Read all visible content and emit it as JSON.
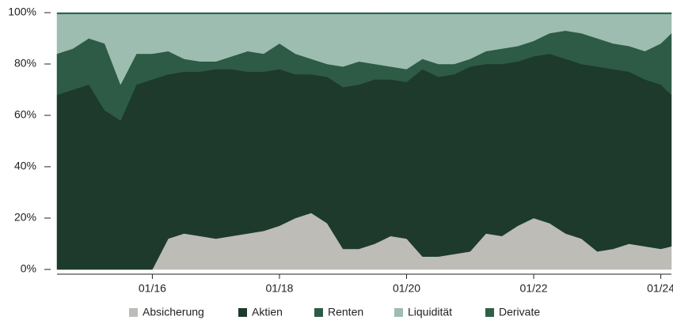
{
  "chart_data": {
    "type": "stacked_area",
    "x": [
      "2014-07",
      "2014-10",
      "2015-01",
      "2015-04",
      "2015-07",
      "2015-10",
      "2016-01",
      "2016-04",
      "2016-07",
      "2016-10",
      "2017-01",
      "2017-04",
      "2017-07",
      "2017-10",
      "2018-01",
      "2018-04",
      "2018-07",
      "2018-10",
      "2019-01",
      "2019-04",
      "2019-07",
      "2019-10",
      "2020-01",
      "2020-04",
      "2020-07",
      "2020-10",
      "2021-01",
      "2021-04",
      "2021-07",
      "2021-10",
      "2022-01",
      "2022-04",
      "2022-07",
      "2022-10",
      "2023-01",
      "2023-04",
      "2023-07",
      "2023-10",
      "2024-01",
      "2024-03"
    ],
    "series": [
      {
        "name": "Absicherung",
        "color": "#bdbcb6",
        "values": [
          0,
          0,
          0,
          0,
          0,
          0,
          0,
          12,
          14,
          13,
          12,
          13,
          14,
          15,
          17,
          20,
          22,
          18,
          8,
          8,
          10,
          13,
          12,
          5,
          5,
          6,
          7,
          14,
          13,
          17,
          20,
          18,
          14,
          12,
          7,
          8,
          10,
          9,
          8,
          9
        ]
      },
      {
        "name": "Aktien",
        "color": "#1d3a2c",
        "values": [
          68,
          70,
          72,
          62,
          58,
          72,
          74,
          64,
          63,
          64,
          66,
          65,
          63,
          62,
          61,
          56,
          54,
          57,
          63,
          64,
          64,
          61,
          61,
          73,
          70,
          70,
          72,
          66,
          67,
          64,
          63,
          66,
          68,
          68,
          72,
          70,
          67,
          65,
          64,
          59
        ]
      },
      {
        "name": "Renten",
        "color": "#2d5b45",
        "values": [
          16,
          16,
          18,
          26,
          14,
          12,
          10,
          9,
          5,
          4,
          3,
          5,
          8,
          7,
          10,
          8,
          6,
          5,
          8,
          9,
          6,
          5,
          5,
          4,
          5,
          4,
          3,
          5,
          6,
          6,
          6,
          8,
          11,
          12,
          11,
          10,
          10,
          11,
          16,
          24
        ]
      },
      {
        "name": "Liquidität",
        "color": "#9cbdb0",
        "values": [
          15.5,
          13.5,
          9.5,
          11.5,
          27.5,
          15.5,
          15.5,
          14.5,
          17.5,
          18.5,
          18.5,
          16.5,
          14.5,
          15.5,
          11.5,
          15.5,
          17.5,
          19.5,
          20.5,
          18.5,
          19.5,
          20.5,
          21.5,
          17.5,
          19.5,
          19.5,
          17.5,
          14.5,
          13.5,
          12.5,
          10.5,
          7.5,
          6.5,
          7.5,
          9.5,
          11.5,
          12.5,
          14.5,
          11.5,
          7.5
        ]
      },
      {
        "name": "Derivate",
        "color": "#2f5f47",
        "values": [
          0.5,
          0.5,
          0.5,
          0.5,
          0.5,
          0.5,
          0.5,
          0.5,
          0.5,
          0.5,
          0.5,
          0.5,
          0.5,
          0.5,
          0.5,
          0.5,
          0.5,
          0.5,
          0.5,
          0.5,
          0.5,
          0.5,
          0.5,
          0.5,
          0.5,
          0.5,
          0.5,
          0.5,
          0.5,
          0.5,
          0.5,
          0.5,
          0.5,
          0.5,
          0.5,
          0.5,
          0.5,
          0.5,
          0.5,
          0.5
        ]
      }
    ],
    "xlim": [
      "2014-07",
      "2024-03"
    ],
    "xticks": [
      {
        "value": "2016-01",
        "label": "01/16"
      },
      {
        "value": "2018-01",
        "label": "01/18"
      },
      {
        "value": "2020-01",
        "label": "01/20"
      },
      {
        "value": "2022-01",
        "label": "01/22"
      },
      {
        "value": "2024-01",
        "label": "01/24"
      }
    ],
    "ylim": [
      0,
      100
    ],
    "yticks": [
      {
        "value": 0,
        "label": "0%"
      },
      {
        "value": 20,
        "label": "20%"
      },
      {
        "value": 40,
        "label": "40%"
      },
      {
        "value": 60,
        "label": "60%"
      },
      {
        "value": 80,
        "label": "80%"
      },
      {
        "value": 100,
        "label": "100%"
      }
    ],
    "legend": "bottom"
  }
}
